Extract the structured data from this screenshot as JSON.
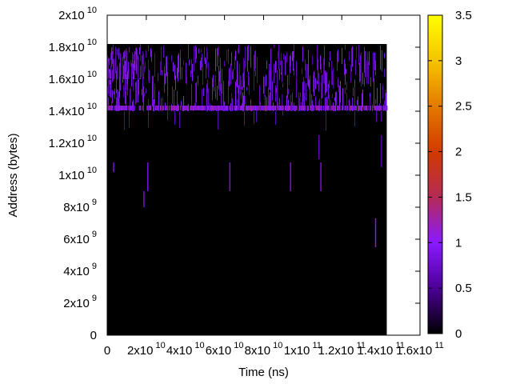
{
  "chart_data": {
    "type": "heatmap",
    "title": "",
    "xlabel": "Time (ns)",
    "ylabel": "Address (bytes)",
    "xlim": [
      0,
      160000000000
    ],
    "ylim": [
      0,
      20000000000
    ],
    "grid": false,
    "x_ticks": [
      {
        "value": 0,
        "base": "0",
        "exp": ""
      },
      {
        "value": 20000000000,
        "base": "2x10",
        "exp": "10"
      },
      {
        "value": 40000000000,
        "base": "4x10",
        "exp": "10"
      },
      {
        "value": 60000000000,
        "base": "6x10",
        "exp": "10"
      },
      {
        "value": 80000000000,
        "base": "8x10",
        "exp": "10"
      },
      {
        "value": 100000000000,
        "base": "1x10",
        "exp": "11"
      },
      {
        "value": 120000000000,
        "base": "1.2x10",
        "exp": "11"
      },
      {
        "value": 140000000000,
        "base": "1.4x10",
        "exp": "11"
      },
      {
        "value": 160000000000,
        "base": "1.6x10",
        "exp": "11"
      }
    ],
    "y_ticks": [
      {
        "value": 0,
        "base": "0",
        "exp": ""
      },
      {
        "value": 2000000000,
        "base": "2x10",
        "exp": "9"
      },
      {
        "value": 4000000000,
        "base": "4x10",
        "exp": "9"
      },
      {
        "value": 6000000000,
        "base": "6x10",
        "exp": "9"
      },
      {
        "value": 8000000000,
        "base": "8x10",
        "exp": "9"
      },
      {
        "value": 10000000000,
        "base": "1x10",
        "exp": "10"
      },
      {
        "value": 12000000000,
        "base": "1.2x10",
        "exp": "10"
      },
      {
        "value": 14000000000,
        "base": "1.4x10",
        "exp": "10"
      },
      {
        "value": 16000000000,
        "base": "1.6x10",
        "exp": "10"
      },
      {
        "value": 18000000000,
        "base": "1.8x10",
        "exp": "10"
      },
      {
        "value": 20000000000,
        "base": "2x10",
        "exp": "10"
      }
    ],
    "colorbar": {
      "min": 0,
      "max": 3.5,
      "ticks": [
        {
          "value": 0,
          "label": "0"
        },
        {
          "value": 0.5,
          "label": "0.5"
        },
        {
          "value": 1,
          "label": "1"
        },
        {
          "value": 1.5,
          "label": "1.5"
        },
        {
          "value": 2,
          "label": "2"
        },
        {
          "value": 2.5,
          "label": "2.5"
        },
        {
          "value": 3,
          "label": "3"
        },
        {
          "value": 3.5,
          "label": "3.5"
        }
      ],
      "colors": [
        "#000000",
        "#4b0096",
        "#8a1aff",
        "#b52a55",
        "#d13a00",
        "#e47a00",
        "#f5c400",
        "#ffff00"
      ]
    },
    "data_extent": {
      "x": [
        0,
        143000000000
      ],
      "y": [
        0,
        18200000000
      ]
    },
    "background_value": 0,
    "regions": [
      {
        "x": [
          0,
          143000000000
        ],
        "y": [
          14000000000,
          18200000000
        ],
        "value": 0.9,
        "pattern": "dense-vertical-streaks"
      },
      {
        "x": [
          0,
          143000000000
        ],
        "y": [
          14050000000,
          14350000000
        ],
        "value": 1.1,
        "pattern": "band"
      },
      {
        "x": [
          500000000,
          19000000000
        ],
        "y": [
          16000000000,
          18100000000
        ],
        "value": 1.0,
        "pattern": "dense-vertical-streaks"
      }
    ],
    "sparse_marks": [
      {
        "x": 3000000000,
        "y": [
          10200000000,
          10800000000
        ],
        "value": 0.9
      },
      {
        "x": 18500000000,
        "y": [
          8000000000,
          9000000000
        ],
        "value": 0.9
      },
      {
        "x": 20500000000,
        "y": [
          9000000000,
          10800000000
        ],
        "value": 0.9
      },
      {
        "x": 62500000000,
        "y": [
          9000000000,
          10800000000
        ],
        "value": 0.9
      },
      {
        "x": 93500000000,
        "y": [
          9000000000,
          10800000000
        ],
        "value": 0.9
      },
      {
        "x": 109000000000,
        "y": [
          9000000000,
          10800000000
        ],
        "value": 0.9
      },
      {
        "x": 108000000000,
        "y": [
          11000000000,
          12500000000
        ],
        "value": 0.7
      },
      {
        "x": 137000000000,
        "y": [
          5500000000,
          7300000000
        ],
        "value": 1.0
      },
      {
        "x": 140000000000,
        "y": [
          10500000000,
          12500000000
        ],
        "value": 0.6
      }
    ]
  }
}
